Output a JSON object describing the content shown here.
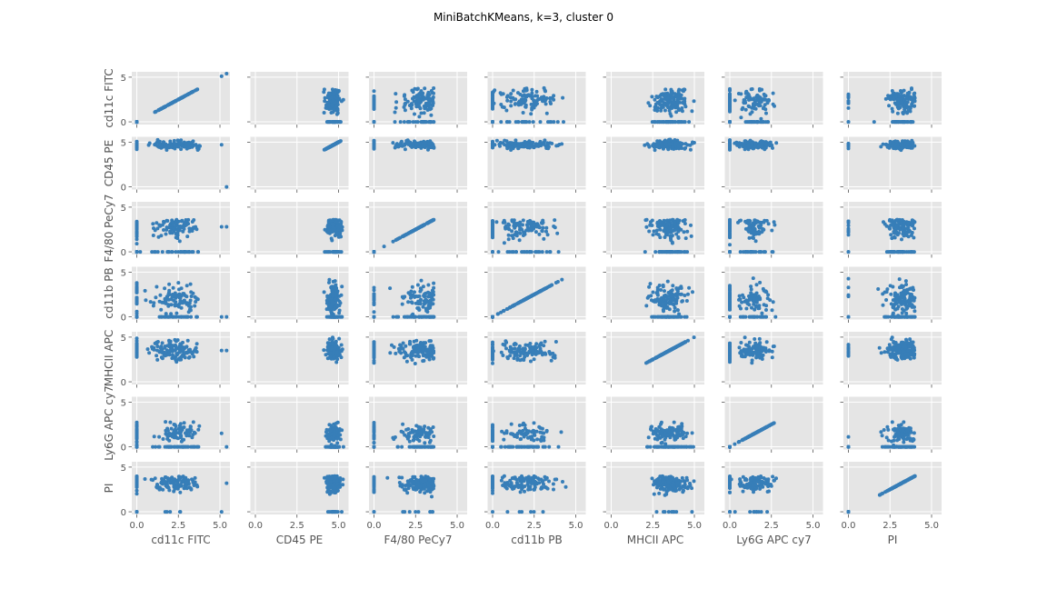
{
  "chart_data": {
    "type": "scatter",
    "title": "MiniBatchKMeans, k=3, cluster 0",
    "variables": [
      "cd11c FITC",
      "CD45 PE",
      "F4/80 PeCy7",
      "cd11b PB",
      "MHCII APC",
      "Ly6G APC cy7",
      "PI"
    ],
    "xlim": [
      -0.3,
      5.6
    ],
    "ylim": [
      -0.3,
      5.6
    ],
    "ticks": [
      0,
      2.5,
      5
    ],
    "tick_labels_x": [
      "0.0",
      "2.5",
      "5.0"
    ],
    "tick_labels_y": [
      "0",
      "5"
    ],
    "grid": true,
    "color": "#377eb8",
    "background": "#e5e5e5",
    "approximate_distributions": {
      "cd11c FITC": {
        "bulk_min": 0.0,
        "bulk_max": 3.8,
        "center": 2.4,
        "zero_fraction": 0.25,
        "outliers": [
          5.1,
          5.4
        ]
      },
      "CD45 PE": {
        "bulk_min": 4.1,
        "bulk_max": 5.3,
        "center": 4.7,
        "zero_fraction": 0.0,
        "outliers": []
      },
      "F4/80 PeCy7": {
        "bulk_min": 0.0,
        "bulk_max": 3.6,
        "center": 2.8,
        "zero_fraction": 0.2,
        "outliers": []
      },
      "cd11b PB": {
        "bulk_min": 0.0,
        "bulk_max": 4.4,
        "center": 2.0,
        "zero_fraction": 0.3,
        "outliers": []
      },
      "MHCII APC": {
        "bulk_min": 2.0,
        "bulk_max": 5.0,
        "center": 3.5,
        "zero_fraction": 0.0,
        "outliers": []
      },
      "Ly6G APC cy7": {
        "bulk_min": 0.0,
        "bulk_max": 2.8,
        "center": 1.5,
        "zero_fraction": 0.4,
        "outliers": []
      },
      "PI": {
        "bulk_min": 1.3,
        "bulk_max": 4.0,
        "center": 3.2,
        "zero_fraction": 0.05,
        "outliers": []
      }
    }
  }
}
